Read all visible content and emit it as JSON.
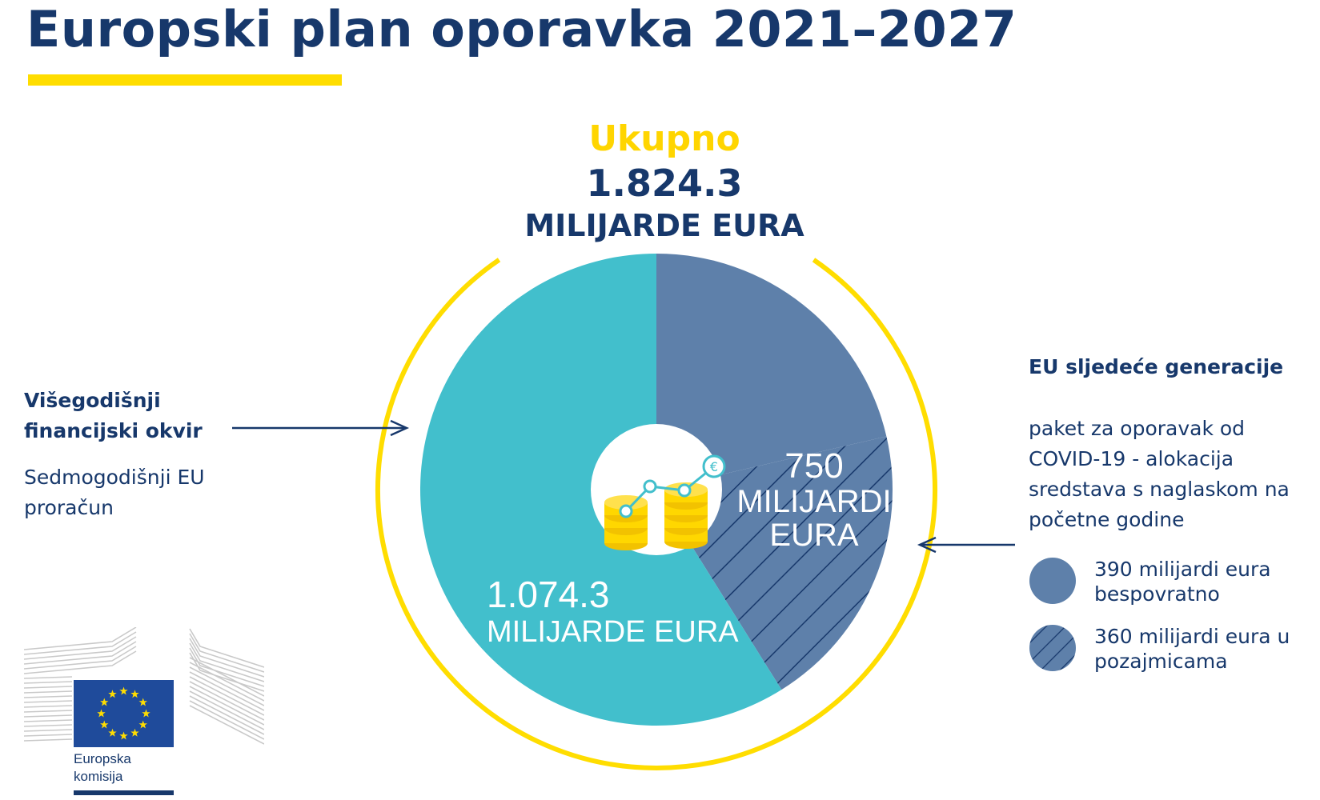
{
  "title": "Europski plan oporavka 2021–2027",
  "total": {
    "label": "Ukupno",
    "value": "1.824.3",
    "unit": "MILIJARDE EURA"
  },
  "colors": {
    "title": "#17386b",
    "accent_yellow": "#ffdd00",
    "mff_teal": "#42bfcc",
    "ngeu_blue": "#5e80aa",
    "hatch_lines": "#17386b"
  },
  "chart_data": {
    "type": "pie",
    "title": "Ukupno 1.824.3 MILIJARDE EURA",
    "total": 1824.3,
    "slices": [
      {
        "value": 1074.3,
        "label_value": "1.074.3",
        "label_unit": "MILIJARDE EURA",
        "color": "#42bfcc",
        "pattern": "solid"
      },
      {
        "value": 390,
        "color": "#5e80aa",
        "pattern": "solid"
      },
      {
        "value": 360,
        "color": "#5e80aa",
        "pattern": "hatched"
      }
    ],
    "combined_label": {
      "value": "750",
      "unit_line1": "MILIJARDI",
      "unit_line2": "EURA"
    },
    "center_icon": "coins-growth-euro-icon"
  },
  "left_annotation": {
    "title": "Višegodišnji financijski okvir",
    "desc": "Sedmogodišnji EU proračun"
  },
  "right_annotation": {
    "title": "EU sljedeće generacije",
    "desc": "paket za oporavak od COVID-19 - alokacija sredstava s naglaskom na početne godine"
  },
  "legend": [
    {
      "text": "390 milijardi eura bespovratno",
      "pattern": "solid",
      "color": "#5e80aa"
    },
    {
      "text": "360 milijardi eura u pozajmicama",
      "pattern": "hatched",
      "color": "#5e80aa"
    }
  ],
  "logo": {
    "line1": "Europska",
    "line2": "komisija",
    "flag_color": "#1f4b9b",
    "star_color": "#ffdd00"
  }
}
